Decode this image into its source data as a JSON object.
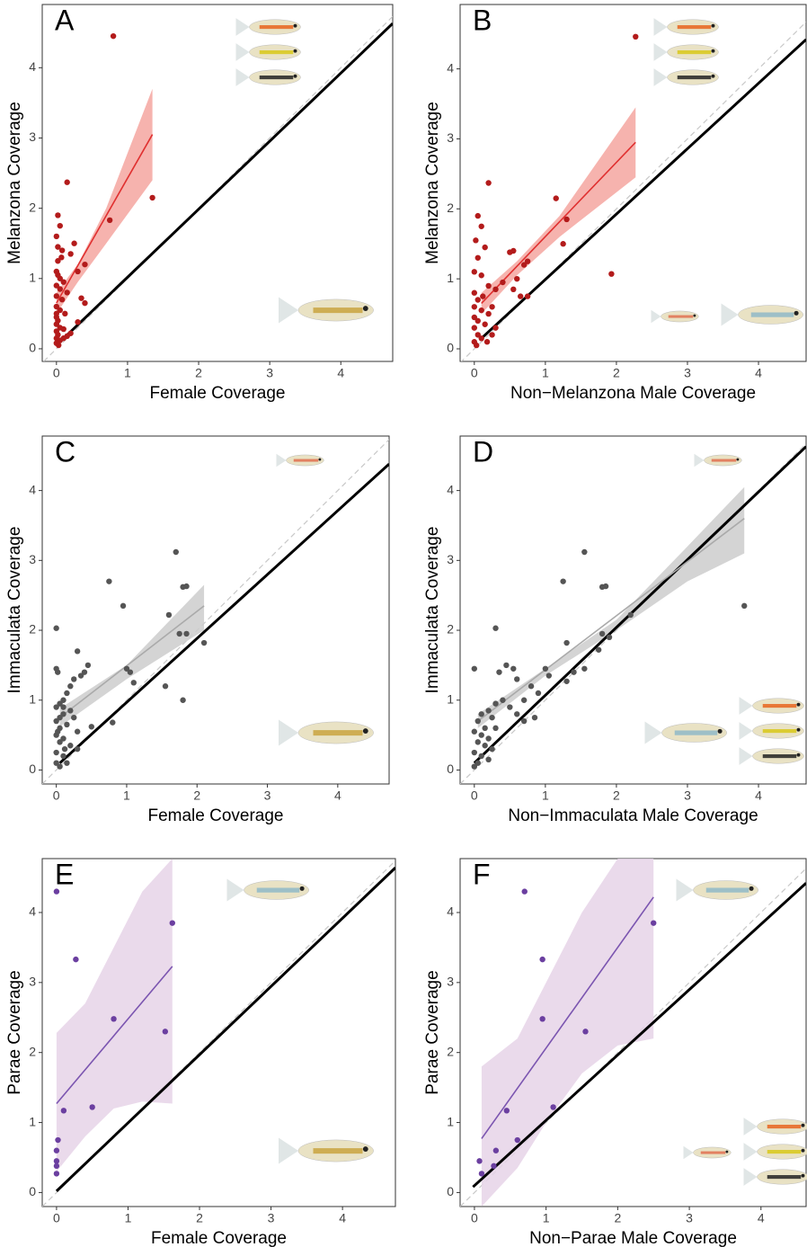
{
  "chart_data": [
    {
      "type": "scatter",
      "panel_label": "A",
      "x_label": "Female Coverage",
      "y_label": "Melanzona Coverage",
      "xlim": [
        -0.2,
        4.73
      ],
      "ylim": [
        -0.18,
        4.9
      ],
      "xticks": [
        0,
        1,
        2,
        3,
        4
      ],
      "yticks": [
        0,
        1,
        2,
        3,
        4
      ],
      "points": {
        "color": "#b31b1b",
        "x": [
          0.8,
          0.15,
          1.35,
          0.75,
          0.02,
          0.05,
          0.0,
          0.02,
          0.08,
          0.25,
          0.2,
          0.4,
          0.3,
          0.02,
          0.0,
          0.05,
          0.1,
          0.0,
          0.05,
          0.15,
          0.0,
          0.08,
          0.35,
          0.4,
          0.0,
          0.05,
          0.12,
          0.0,
          0.02,
          0.3,
          0.0,
          0.05,
          0.1,
          0.0,
          0.2,
          0.02,
          0.15,
          0.0,
          0.05,
          0.0,
          0.03,
          0.1,
          0.0,
          0.02,
          0.07
        ],
        "y": [
          4.45,
          2.37,
          2.15,
          1.83,
          1.9,
          1.75,
          1.6,
          1.45,
          1.4,
          1.5,
          1.35,
          1.2,
          1.1,
          1.25,
          1.1,
          1.0,
          0.95,
          0.9,
          0.85,
          0.8,
          0.75,
          0.7,
          0.72,
          0.65,
          0.6,
          0.55,
          0.5,
          0.45,
          0.4,
          0.38,
          0.35,
          0.3,
          0.28,
          0.25,
          0.22,
          0.2,
          0.18,
          0.15,
          0.12,
          0.08,
          0.05,
          0.15,
          0.5,
          1.05,
          1.3
        ]
      },
      "fit": {
        "color": "#e03030",
        "x": [
          0,
          1.35
        ],
        "y": [
          0.65,
          3.05
        ]
      },
      "band": {
        "color": "#f4a6a0",
        "x": [
          0,
          0.3,
          0.7,
          1.35
        ],
        "lower": [
          0.5,
          0.95,
          1.5,
          2.4
        ],
        "upper": [
          0.8,
          1.2,
          2.0,
          3.7
        ]
      },
      "reference_line": {
        "color": "#000000",
        "x": [
          0,
          4.73
        ],
        "y": [
          0.05,
          4.63
        ]
      },
      "identity_line": {
        "color": "#c8c8c8",
        "x": [
          -0.18,
          4.73
        ],
        "y": [
          -0.18,
          4.73
        ]
      }
    },
    {
      "type": "scatter",
      "panel_label": "B",
      "x_label": "Non−Melanzona Male Coverage",
      "y_label": "Melanzona Coverage",
      "xlim": [
        -0.2,
        4.67
      ],
      "ylim": [
        -0.18,
        4.92
      ],
      "xticks": [
        0,
        1,
        2,
        3,
        4
      ],
      "yticks": [
        0,
        1,
        2,
        3,
        4
      ],
      "points": {
        "color": "#b31b1b",
        "x": [
          2.27,
          0.2,
          1.15,
          1.3,
          1.25,
          1.93,
          0.7,
          0.75,
          0.55,
          0.5,
          0.6,
          0.65,
          0.75,
          0.55,
          0.4,
          0.3,
          0.05,
          0.1,
          0.02,
          0.15,
          0.05,
          0.0,
          0.1,
          0.2,
          0.0,
          0.12,
          0.05,
          0.25,
          0.0,
          0.1,
          0.2,
          0.0,
          0.05,
          0.15,
          0.3,
          0.0,
          0.05,
          0.25,
          0.1,
          0.0,
          0.03,
          0.18
        ],
        "y": [
          4.46,
          2.37,
          2.15,
          1.85,
          1.5,
          1.07,
          1.2,
          1.25,
          1.4,
          1.38,
          1.0,
          0.75,
          0.75,
          0.85,
          0.95,
          0.85,
          1.9,
          1.75,
          1.55,
          1.45,
          1.3,
          1.1,
          1.05,
          0.9,
          0.8,
          0.75,
          0.7,
          0.6,
          0.6,
          0.55,
          0.5,
          0.45,
          0.4,
          0.35,
          0.3,
          0.3,
          0.2,
          0.2,
          0.15,
          0.1,
          0.05,
          0.1
        ]
      },
      "fit": {
        "color": "#e03030",
        "x": [
          0.1,
          2.27
        ],
        "y": [
          0.65,
          2.95
        ]
      },
      "band": {
        "color": "#f4a6a0",
        "x": [
          0.1,
          0.6,
          1.2,
          2.27
        ],
        "lower": [
          0.5,
          1.05,
          1.6,
          2.45
        ],
        "upper": [
          0.8,
          1.25,
          1.9,
          3.45
        ]
      },
      "reference_line": {
        "color": "#000000",
        "x": [
          0.1,
          4.67
        ],
        "y": [
          0.15,
          4.42
        ]
      },
      "identity_line": {
        "color": "#c8c8c8",
        "x": [
          -0.2,
          4.67
        ],
        "y": [
          -0.2,
          4.67
        ]
      }
    },
    {
      "type": "scatter",
      "panel_label": "C",
      "x_label": "Female Coverage",
      "y_label": "Immaculata Coverage",
      "xlim": [
        -0.2,
        4.73
      ],
      "ylim": [
        -0.2,
        4.78
      ],
      "xticks": [
        0,
        1,
        2,
        3,
        4
      ],
      "yticks": [
        0,
        1,
        2,
        3,
        4
      ],
      "points": {
        "color": "#555555",
        "x": [
          0,
          0,
          0.02,
          0.3,
          0.45,
          0.4,
          0.35,
          0.25,
          0.2,
          0.15,
          0.1,
          0.05,
          0,
          0.2,
          0.1,
          0.25,
          0,
          0.15,
          0.05,
          0.5,
          0.8,
          0.3,
          0,
          0.1,
          0.05,
          0.2,
          0.3,
          0,
          0.1,
          0.15,
          0,
          0.05,
          0.75,
          0.95,
          1.7,
          1.8,
          1.85,
          1.6,
          1.75,
          1.85,
          2.1,
          1.8,
          1.55,
          1.05,
          1.1,
          1.0,
          0.1,
          0.05,
          0.02,
          0.12
        ],
        "y": [
          2.03,
          1.45,
          1.4,
          1.7,
          1.5,
          1.4,
          1.35,
          1.3,
          1.2,
          1.1,
          1.0,
          0.95,
          0.9,
          0.85,
          0.8,
          0.75,
          0.7,
          0.65,
          0.6,
          0.62,
          0.68,
          0.55,
          0.5,
          0.45,
          0.4,
          0.35,
          0.3,
          0.25,
          0.2,
          0.1,
          0.1,
          0.05,
          2.7,
          2.35,
          3.12,
          2.62,
          2.63,
          2.22,
          1.95,
          1.95,
          1.82,
          1.0,
          1.2,
          1.4,
          1.25,
          1.45,
          0.9,
          0.75,
          0.55,
          0.3
        ]
      },
      "fit": {
        "color": "#aaaaaa",
        "x": [
          0.05,
          2.1
        ],
        "y": [
          0.75,
          2.35
        ]
      },
      "band": {
        "color": "#cccccc",
        "x": [
          0.05,
          1.0,
          2.1
        ],
        "lower": [
          0.62,
          1.3,
          2.0
        ],
        "upper": [
          0.88,
          1.5,
          2.65
        ]
      },
      "reference_line": {
        "color": "#000000",
        "x": [
          0.05,
          4.73
        ],
        "y": [
          0.1,
          4.38
        ]
      },
      "identity_line": {
        "color": "#c8c8c8",
        "x": [
          -0.2,
          4.73
        ],
        "y": [
          -0.2,
          4.73
        ]
      }
    },
    {
      "type": "scatter",
      "panel_label": "D",
      "x_label": "Non−Immaculata Male Coverage",
      "y_label": "Immaculata Coverage",
      "xlim": [
        -0.2,
        4.67
      ],
      "ylim": [
        -0.2,
        4.78
      ],
      "xticks": [
        0,
        1,
        2,
        3,
        4
      ],
      "yticks": [
        0,
        1,
        2,
        3,
        4
      ],
      "points": {
        "color": "#555555",
        "x": [
          3.8,
          1.55,
          1.85,
          1.8,
          1.25,
          1.3,
          0.3,
          0,
          2.2,
          1.8,
          1.9,
          1.75,
          1.4,
          1.55,
          1.0,
          1.05,
          0.45,
          0.55,
          0.35,
          0.6,
          0.8,
          0.9,
          1.3,
          0.7,
          0.4,
          0.5,
          0.3,
          0.2,
          0.1,
          0.25,
          0.6,
          0.7,
          0.85,
          0.05,
          0.15,
          0.3,
          0.0,
          0.1,
          0.2,
          0.05,
          0.15,
          0.25,
          0.0,
          0.1,
          0.05,
          0.0,
          0.2
        ],
        "y": [
          2.35,
          3.12,
          2.63,
          2.62,
          2.7,
          1.82,
          2.03,
          1.45,
          2.22,
          1.95,
          1.9,
          1.72,
          1.4,
          1.45,
          1.45,
          1.35,
          1.5,
          1.45,
          1.4,
          1.3,
          1.2,
          1.1,
          1.27,
          1.0,
          1.0,
          0.9,
          0.95,
          0.85,
          0.8,
          0.75,
          0.8,
          0.7,
          0.75,
          0.7,
          0.6,
          0.6,
          0.55,
          0.5,
          0.45,
          0.4,
          0.35,
          0.3,
          0.25,
          0.2,
          0.1,
          0.05,
          0.15
        ]
      },
      "fit": {
        "color": "#aaaaaa",
        "x": [
          0.05,
          3.8
        ],
        "y": [
          0.7,
          3.6
        ]
      },
      "band": {
        "color": "#cccccc",
        "x": [
          0.05,
          1.0,
          2.0,
          3.0,
          3.8
        ],
        "lower": [
          0.6,
          1.35,
          2.0,
          2.7,
          3.1
        ],
        "upper": [
          0.8,
          1.45,
          2.15,
          3.2,
          4.05
        ]
      },
      "reference_line": {
        "color": "#000000",
        "x": [
          0,
          4.67
        ],
        "y": [
          0.1,
          4.63
        ]
      },
      "identity_line": {
        "color": "#c8c8c8",
        "x": [
          -0.2,
          4.67
        ],
        "y": [
          -0.2,
          4.67
        ]
      }
    },
    {
      "type": "scatter",
      "panel_label": "E",
      "x_label": "Female Coverage",
      "y_label": "Parae Coverage",
      "xlim": [
        -0.2,
        4.74
      ],
      "ylim": [
        -0.2,
        4.77
      ],
      "xticks": [
        0,
        1,
        2,
        3,
        4
      ],
      "yticks": [
        0,
        1,
        2,
        3,
        4
      ],
      "points": {
        "color": "#6b3fa0",
        "x": [
          0,
          1.62,
          0.27,
          0.8,
          1.52,
          0.1,
          0.5,
          0.02,
          0,
          0,
          0,
          0
        ],
        "y": [
          4.3,
          3.85,
          3.33,
          2.48,
          2.3,
          1.17,
          1.22,
          0.75,
          0.6,
          0.45,
          0.38,
          0.27
        ]
      },
      "fit": {
        "color": "#7b55b0",
        "x": [
          0,
          1.62
        ],
        "y": [
          1.27,
          3.23
        ]
      },
      "band": {
        "color": "#e6d3e8",
        "x": [
          0,
          0.4,
          0.8,
          1.2,
          1.62
        ],
        "lower": [
          0.3,
          0.8,
          1.2,
          1.3,
          1.27
        ],
        "upper": [
          2.28,
          2.7,
          3.5,
          4.3,
          4.77
        ]
      },
      "reference_line": {
        "color": "#000000",
        "x": [
          0,
          4.74
        ],
        "y": [
          0.02,
          4.64
        ]
      },
      "identity_line": {
        "color": "#c8c8c8",
        "x": [
          -0.2,
          4.74
        ],
        "y": [
          -0.2,
          4.74
        ]
      }
    },
    {
      "type": "scatter",
      "panel_label": "F",
      "x_label": "Non−Parae Male Coverage",
      "y_label": "Parae Coverage",
      "xlim": [
        -0.2,
        4.63
      ],
      "ylim": [
        -0.2,
        4.77
      ],
      "xticks": [
        0,
        1,
        2,
        3,
        4
      ],
      "yticks": [
        0,
        1,
        2,
        3,
        4
      ],
      "points": {
        "color": "#6b3fa0",
        "x": [
          0.7,
          2.5,
          0.95,
          0.95,
          1.55,
          1.1,
          0.45,
          0.6,
          0.07,
          0.3,
          0.27,
          0.1
        ],
        "y": [
          4.3,
          3.85,
          3.33,
          2.48,
          2.3,
          1.22,
          1.17,
          0.75,
          0.45,
          0.6,
          0.38,
          0.27
        ]
      },
      "fit": {
        "color": "#7b55b0",
        "x": [
          0.1,
          2.5
        ],
        "y": [
          0.77,
          4.22
        ]
      },
      "band": {
        "color": "#e6d3e8",
        "x": [
          0.1,
          0.6,
          1.0,
          1.5,
          2.0,
          2.5
        ],
        "lower": [
          -0.2,
          0.35,
          1.0,
          1.7,
          2.1,
          2.2
        ],
        "upper": [
          1.8,
          2.2,
          3.0,
          4.0,
          4.77,
          4.77
        ]
      },
      "reference_line": {
        "color": "#000000",
        "x": [
          -0.02,
          4.63
        ],
        "y": [
          0.08,
          4.42
        ]
      },
      "identity_line": {
        "color": "#c8c8c8",
        "x": [
          -0.2,
          4.63
        ],
        "y": [
          -0.2,
          4.63
        ]
      }
    }
  ]
}
